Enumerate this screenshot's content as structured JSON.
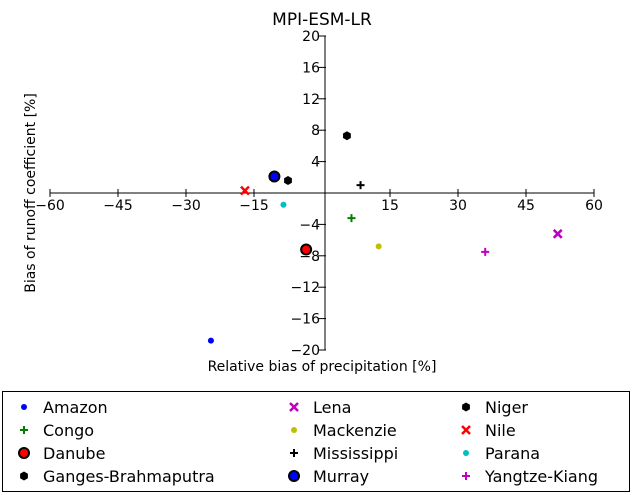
{
  "chart_data": {
    "type": "scatter",
    "title": "MPI-ESM-LR",
    "xlabel": "Relative bias of precipitation [%]",
    "ylabel": "Bias of runoff coefficient [%]",
    "xlim": [
      -60,
      60
    ],
    "ylim": [
      -20,
      20
    ],
    "xticks": [
      -60,
      -45,
      -30,
      -15,
      15,
      30,
      45,
      60
    ],
    "yticks": [
      -20,
      -16,
      -12,
      -8,
      -4,
      4,
      8,
      12,
      16,
      20
    ],
    "xtick_labels": [
      "−60",
      "−45",
      "−30",
      "−15",
      "15",
      "30",
      "45",
      "60"
    ],
    "ytick_labels": [
      "−20",
      "−16",
      "−12",
      "−8",
      "−4",
      "4",
      "8",
      "12",
      "16",
      "20"
    ],
    "grid": false,
    "legend_position": "bottom",
    "series": [
      {
        "name": "Amazon",
        "marker": "dot",
        "color": "#0000ff",
        "x": -24.5,
        "y": -18.8
      },
      {
        "name": "Congo",
        "marker": "plus",
        "color": "#008000",
        "x": 6.5,
        "y": -3.2
      },
      {
        "name": "Danube",
        "marker": "circle",
        "color": "#ff0000",
        "x": -3.5,
        "y": -7.2
      },
      {
        "name": "Ganges-Brahmaputra",
        "marker": "hexagon",
        "color": "#000000",
        "x": -7.5,
        "y": 1.6
      },
      {
        "name": "Lena",
        "marker": "x",
        "color": "#bf00bf",
        "x": 52,
        "y": -5.2
      },
      {
        "name": "Mackenzie",
        "marker": "dot",
        "color": "#bfbf00",
        "x": 12.5,
        "y": -6.8
      },
      {
        "name": "Mississippi",
        "marker": "plus",
        "color": "#000000",
        "x": 8.5,
        "y": 1.0
      },
      {
        "name": "Murray",
        "marker": "circle",
        "color": "#0000ff",
        "x": -10.5,
        "y": 2.1
      },
      {
        "name": "Niger",
        "marker": "hexagon",
        "color": "#000000",
        "x": 5.5,
        "y": 7.3
      },
      {
        "name": "Nile",
        "marker": "x",
        "color": "#ff0000",
        "x": -17,
        "y": 0.3
      },
      {
        "name": "Parana",
        "marker": "dot",
        "color": "#00bfbf",
        "x": -8.5,
        "y": -1.5
      },
      {
        "name": "Yangtze-Kiang",
        "marker": "plus",
        "color": "#bf00bf",
        "x": 36,
        "y": -7.5
      }
    ]
  }
}
